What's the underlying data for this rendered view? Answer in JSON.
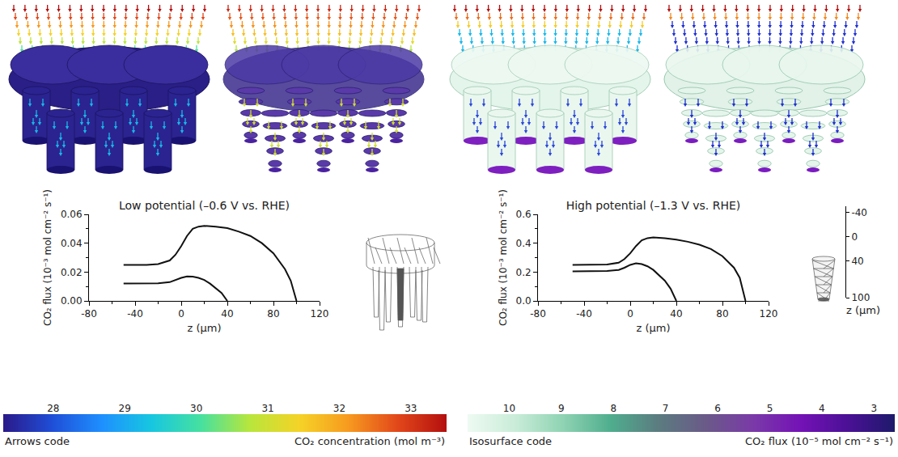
{
  "chart_data": [
    {
      "type": "line",
      "title": "Low potential (–0.6 V vs. RHE)",
      "x_label": "z (μm)",
      "y_label": "CO₂ flux (10⁻³ mol cm⁻² s⁻¹)",
      "xlim": [
        -80,
        120
      ],
      "xticks": [
        -80,
        -40,
        0,
        40,
        80,
        120
      ],
      "ylim": [
        0,
        0.06
      ],
      "yticks": [
        {
          "value": 0,
          "label": "0.00"
        },
        {
          "value": 0.02,
          "label": "0.02"
        },
        {
          "value": 0.04,
          "label": "0.04"
        },
        {
          "value": 0.06,
          "label": "0.06"
        }
      ],
      "grid": false,
      "series": [
        {
          "color": "#111111",
          "line_style": "solid",
          "x": [
            -50,
            -30,
            -20,
            -10,
            -5,
            0,
            5,
            10,
            15,
            20,
            30,
            40,
            50,
            60,
            70,
            80,
            90,
            95,
            100
          ],
          "values": [
            0.025,
            0.025,
            0.0255,
            0.028,
            0.032,
            0.038,
            0.045,
            0.05,
            0.0515,
            0.052,
            0.0515,
            0.0505,
            0.048,
            0.045,
            0.04,
            0.033,
            0.022,
            0.014,
            0
          ]
        },
        {
          "color": "#111111",
          "line_style": "solid",
          "x": [
            -50,
            -30,
            -20,
            -10,
            -5,
            0,
            5,
            10,
            15,
            20,
            25,
            30,
            35,
            40
          ],
          "values": [
            0.012,
            0.012,
            0.0122,
            0.013,
            0.0145,
            0.016,
            0.017,
            0.0168,
            0.016,
            0.0145,
            0.012,
            0.009,
            0.0055,
            0
          ]
        }
      ]
    },
    {
      "type": "line",
      "title": "High potential (–1.3 V vs. RHE)",
      "x_label": "z (μm)",
      "y_label": "CO₂ flux (10⁻³ mol cm⁻² s⁻¹)",
      "xlim": [
        -80,
        120
      ],
      "xticks": [
        -80,
        -40,
        0,
        40,
        80,
        120
      ],
      "ylim": [
        0,
        0.6
      ],
      "yticks": [
        {
          "value": 0,
          "label": "0.0"
        },
        {
          "value": 0.2,
          "label": "0.2"
        },
        {
          "value": 0.4,
          "label": "0.4"
        },
        {
          "value": 0.6,
          "label": "0.6"
        }
      ],
      "grid": false,
      "series": [
        {
          "color": "#111111",
          "line_style": "solid",
          "x": [
            -50,
            -30,
            -20,
            -10,
            -5,
            0,
            5,
            10,
            15,
            20,
            30,
            40,
            50,
            60,
            70,
            80,
            90,
            95,
            100
          ],
          "values": [
            0.25,
            0.25,
            0.252,
            0.265,
            0.29,
            0.33,
            0.38,
            0.42,
            0.435,
            0.44,
            0.435,
            0.425,
            0.41,
            0.39,
            0.36,
            0.31,
            0.23,
            0.16,
            0
          ]
        },
        {
          "color": "#111111",
          "line_style": "solid",
          "x": [
            -50,
            -30,
            -20,
            -10,
            -5,
            0,
            5,
            10,
            15,
            20,
            25,
            30,
            35,
            40
          ],
          "values": [
            0.205,
            0.205,
            0.207,
            0.215,
            0.23,
            0.25,
            0.26,
            0.255,
            0.24,
            0.215,
            0.18,
            0.14,
            0.085,
            0
          ]
        }
      ]
    }
  ],
  "inset_axis": {
    "label": "z (μm)",
    "ylim": [
      100,
      -50
    ],
    "yticks": [
      -40,
      0,
      40,
      100
    ]
  },
  "colorbars": [
    {
      "label_left": "Arrows code",
      "label_right": "CO₂ concentration (mol m⁻³)",
      "clim": [
        27.3,
        33.5
      ],
      "ticks": [
        28,
        29,
        30,
        31,
        32,
        33
      ],
      "colors": [
        "#2a1a8a",
        "#1f4fd8",
        "#1e90ff",
        "#17c7e0",
        "#46e0a0",
        "#b8e63c",
        "#f5d327",
        "#f79a1f",
        "#e2471a",
        "#b30f0f"
      ]
    },
    {
      "label_left": "Isosurface code",
      "label_right": "CO₂ flux (10⁻⁵ mol cm⁻² s⁻¹)",
      "clim": [
        10.8,
        2.6
      ],
      "ticks": [
        10,
        9,
        8,
        7,
        6,
        5,
        4,
        3
      ],
      "colors": [
        "#eefaf2",
        "#c9ecd8",
        "#8fd3b3",
        "#4fae8e",
        "#5b7c80",
        "#6a5a88",
        "#7a3aa8",
        "#7412b6",
        "#4b1096",
        "#1d1a6a"
      ]
    }
  ]
}
